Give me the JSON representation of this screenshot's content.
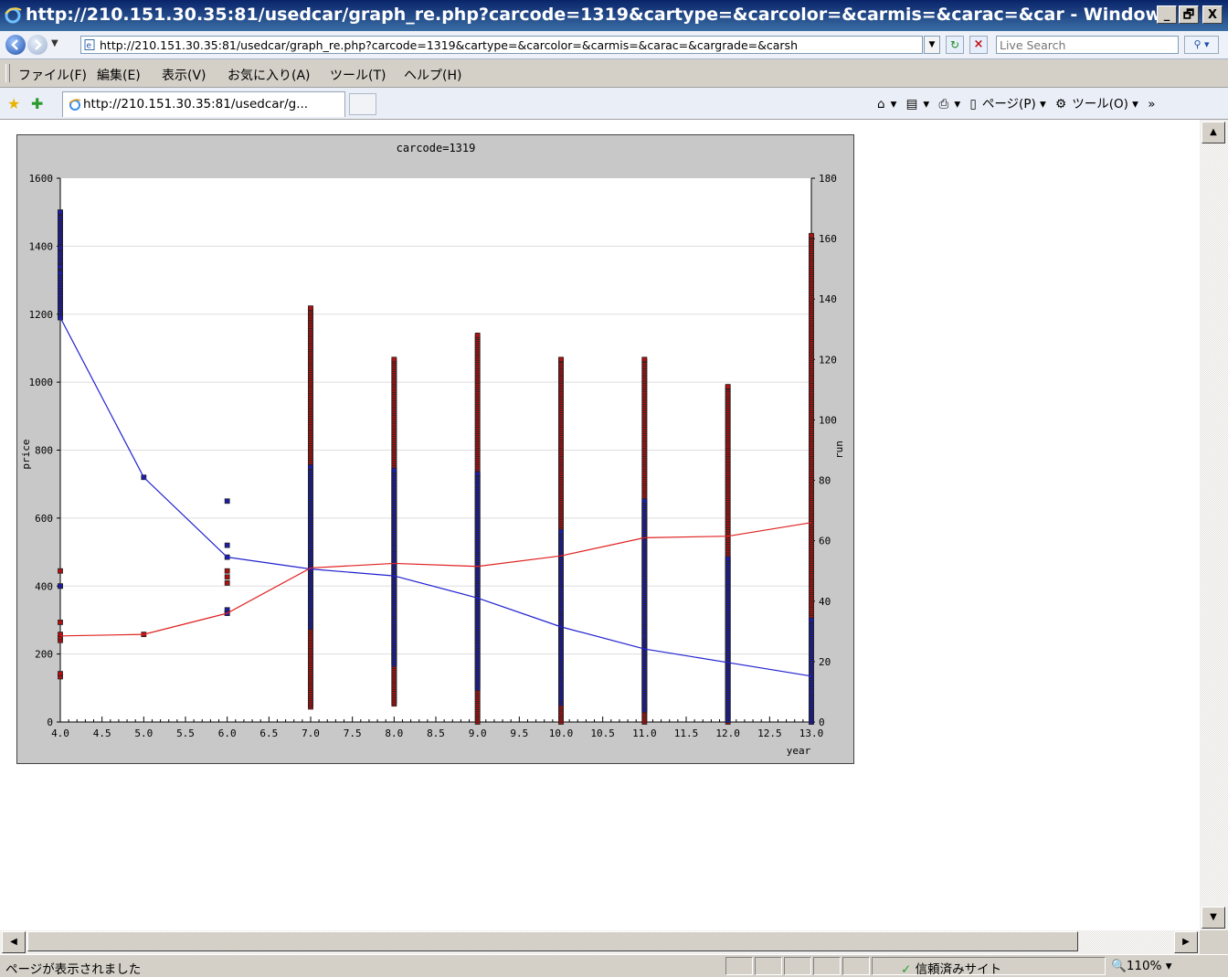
{
  "window": {
    "title": "http://210.151.30.35:81/usedcar/graph_re.php?carcode=1319&cartype=&carcolor=&carmis=&carac=&car - Windows ...",
    "min_label": "_",
    "max_label": "🗗",
    "close_label": "X"
  },
  "address": {
    "url": "http://210.151.30.35:81/usedcar/graph_re.php?carcode=1319&cartype=&carcolor=&carmis=&carac=&cargrade=&carsh",
    "search_placeholder": "Live Search"
  },
  "menu": {
    "items": [
      "ファイル(F)",
      "編集(E)",
      "表示(V)",
      "お気に入り(A)",
      "ツール(T)",
      "ヘルプ(H)"
    ]
  },
  "favorites": {
    "tab_label": "http://210.151.30.35:81/usedcar/g...",
    "commands": [
      "▾",
      "▾",
      "▾",
      "ページ(P) ▾",
      "ツール(O) ▾",
      "»"
    ]
  },
  "status": {
    "text": "ページが表示されました",
    "zone": "信頼済みサイト",
    "zoom": "110%"
  },
  "colors": {
    "price_series": "#2020d0",
    "run_series": "#e02020",
    "chart_frame": "#c8c8c8"
  },
  "chart_data": {
    "type": "scatter",
    "title": "carcode=1319",
    "xlabel": "year",
    "ylabel": "price",
    "y2label": "run",
    "xlim": [
      4.0,
      13.0
    ],
    "ylim": [
      0,
      1600
    ],
    "y2lim": [
      0,
      180
    ],
    "xticks": [
      "4.0",
      "4.5",
      "5.0",
      "5.5",
      "6.0",
      "6.5",
      "7.0",
      "7.5",
      "8.0",
      "8.5",
      "9.0",
      "9.5",
      "10.0",
      "10.5",
      "11.0",
      "11.5",
      "12.0",
      "12.5",
      "13.0"
    ],
    "yticks": [
      "0",
      "200",
      "400",
      "600",
      "800",
      "1000",
      "1200",
      "1400",
      "1600"
    ],
    "y2ticks": [
      "0",
      "20",
      "40",
      "60",
      "80",
      "100",
      "120",
      "140",
      "160",
      "180"
    ],
    "grid": true,
    "series": [
      {
        "axis": "price",
        "line_x": [
          4,
          5,
          6,
          7,
          8,
          9,
          10,
          11,
          12,
          13
        ],
        "line_y": [
          1190,
          720,
          485,
          450,
          430,
          365,
          280,
          215,
          175,
          135
        ],
        "scatter": [
          {
            "x": 4,
            "ymin": 1190,
            "ymax": 1500
          },
          {
            "x": 4,
            "values": [
              1190,
              1320,
              1340,
              1395,
              1500,
              400
            ]
          },
          {
            "x": 5,
            "values": [
              720
            ]
          },
          {
            "x": 6,
            "values": [
              485,
              520,
              650,
              330,
              320
            ]
          },
          {
            "x": 7,
            "ymin": 280,
            "ymax": 750
          },
          {
            "x": 8,
            "ymin": 170,
            "ymax": 740
          },
          {
            "x": 9,
            "ymin": 100,
            "ymax": 730
          },
          {
            "x": 10,
            "ymin": 55,
            "ymax": 560
          },
          {
            "x": 11,
            "ymin": 35,
            "ymax": 650
          },
          {
            "x": 12,
            "ymin": 5,
            "ymax": 480
          },
          {
            "x": 13,
            "ymin": 0,
            "ymax": 300
          }
        ]
      },
      {
        "axis": "run",
        "line_x": [
          4,
          5,
          6,
          7,
          8,
          9,
          10,
          11,
          12,
          13
        ],
        "line_y": [
          28.5,
          29,
          36,
          51,
          52.5,
          51.5,
          55,
          61,
          61.5,
          66
        ],
        "scatter": [
          {
            "x": 4,
            "values": [
              15,
              16,
              27,
              28,
              29,
              33,
              45,
              50
            ]
          },
          {
            "x": 5,
            "values": [
              29
            ]
          },
          {
            "x": 6,
            "values": [
              36,
              46,
              48,
              50
            ]
          },
          {
            "x": 7,
            "ymin": 5,
            "ymax": 137
          },
          {
            "x": 8,
            "ymin": 6,
            "ymax": 120
          },
          {
            "x": 9,
            "ymin": 0,
            "ymax": 128
          },
          {
            "x": 10,
            "ymin": 0,
            "ymax": 120
          },
          {
            "x": 11,
            "ymin": 0,
            "ymax": 120
          },
          {
            "x": 12,
            "ymin": 0,
            "ymax": 111
          },
          {
            "x": 13,
            "ymin": 0,
            "ymax": 161
          }
        ]
      }
    ]
  }
}
